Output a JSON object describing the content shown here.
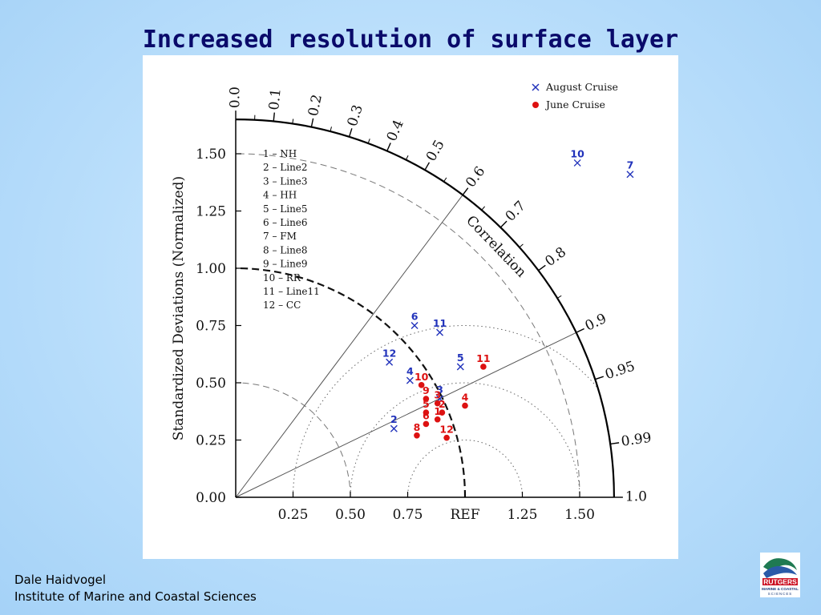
{
  "slide": {
    "title": "Increased resolution of surface layer",
    "author": "Dale Haidvogel",
    "institution": "Institute of Marine and Coastal Sciences",
    "logo_text": "RUTGERS",
    "logo_subtext": "MARINE & COASTAL",
    "logo_subtext2": "SCIENCES"
  },
  "chart_data": {
    "type": "scatter",
    "subtype": "taylor-diagram",
    "title": "",
    "ylabel": "Standardized Deviations (Normalized)",
    "arc_label": "Correlation",
    "std_max": 1.65,
    "ref_std": 1.0,
    "y_ticks": [
      "0.00",
      "0.25",
      "0.50",
      "0.75",
      "1.00",
      "1.25",
      "1.50"
    ],
    "x_ticks": [
      "0.25",
      "0.50",
      "0.75",
      "REF",
      "1.25",
      "1.50"
    ],
    "correlation_ticks": [
      "0.0",
      "0.1",
      "0.2",
      "0.3",
      "0.4",
      "0.5",
      "0.6",
      "0.7",
      "0.8",
      "0.9",
      "0.95",
      "0.99",
      "1.0"
    ],
    "correlation_lines": [
      0.6,
      0.9
    ],
    "legend_placement": "top-right",
    "series": [
      {
        "name": "August Cruise",
        "marker": "x",
        "color": "#2233bb",
        "points": [
          {
            "label": "2",
            "x": 0.69,
            "y": 0.3
          },
          {
            "label": "4",
            "x": 0.76,
            "y": 0.51
          },
          {
            "label": "12",
            "x": 0.67,
            "y": 0.59
          },
          {
            "label": "6",
            "x": 0.78,
            "y": 0.75
          },
          {
            "label": "11",
            "x": 0.89,
            "y": 0.72
          },
          {
            "label": "5",
            "x": 0.98,
            "y": 0.57
          },
          {
            "label": "3",
            "x": 0.89,
            "y": 0.43
          },
          {
            "label": "10",
            "x": 1.49,
            "y": 1.46
          },
          {
            "label": "7",
            "x": 1.72,
            "y": 1.41
          }
        ]
      },
      {
        "name": "June Cruise",
        "marker": "dot",
        "color": "#dd1111",
        "points": [
          {
            "label": "10",
            "x": 0.81,
            "y": 0.49
          },
          {
            "label": "9",
            "x": 0.83,
            "y": 0.43
          },
          {
            "label": "3",
            "x": 0.88,
            "y": 0.41
          },
          {
            "label": "5",
            "x": 0.83,
            "y": 0.37
          },
          {
            "label": "6",
            "x": 0.83,
            "y": 0.32
          },
          {
            "label": "2",
            "x": 0.9,
            "y": 0.37
          },
          {
            "label": "1",
            "x": 0.88,
            "y": 0.34
          },
          {
            "label": "4",
            "x": 1.0,
            "y": 0.4
          },
          {
            "label": "8",
            "x": 0.79,
            "y": 0.27
          },
          {
            "label": "12",
            "x": 0.92,
            "y": 0.26
          },
          {
            "label": "11",
            "x": 1.08,
            "y": 0.57
          }
        ]
      }
    ],
    "key": [
      "1 – NH",
      "2 – Line2",
      "3 – Line3",
      "4 – HH",
      "5 – Line5",
      "6 – Line6",
      "7 – FM",
      "8 – Line8",
      "9 – Line9",
      "10 – RR",
      "11 – Line11",
      "12 – CC"
    ]
  }
}
